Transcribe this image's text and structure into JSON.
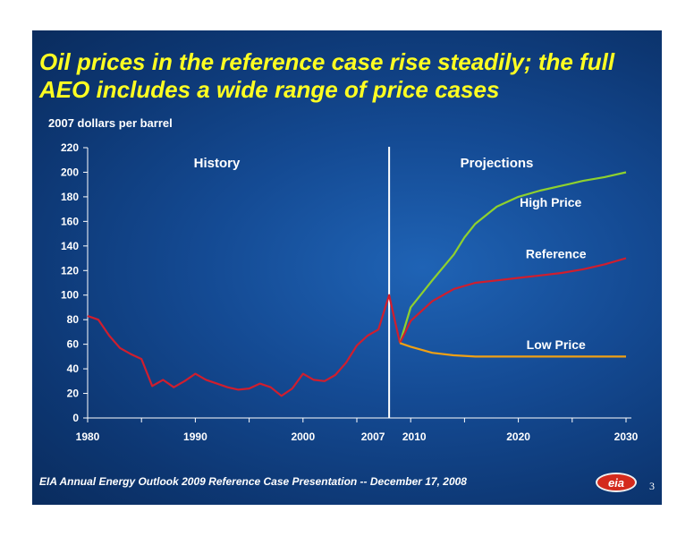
{
  "slide": {
    "title": "Oil prices in the reference case rise steadily; the full AEO includes a wide range of price cases",
    "footer": "EIA Annual Energy Outlook 2009 Reference Case Presentation -- December 17, 2008",
    "page_number": "3",
    "logo_text": "eia",
    "background_color": "#144a93",
    "title_color": "#ffff22"
  },
  "chart_data": {
    "type": "line",
    "title": "",
    "xlabel": "",
    "ylabel": "2007 dollars per barrel",
    "xlim": [
      1980,
      2030
    ],
    "ylim": [
      0,
      220
    ],
    "y_ticks": [
      0,
      20,
      40,
      60,
      80,
      100,
      120,
      140,
      160,
      180,
      200,
      220
    ],
    "x_tick_labels": [
      {
        "x": 1980,
        "label": "1980"
      },
      {
        "x": 1990,
        "label": "1990"
      },
      {
        "x": 2000,
        "label": "2000"
      },
      {
        "x": 2007,
        "label": "2007"
      },
      {
        "x": 2010,
        "label": "2010"
      },
      {
        "x": 2020,
        "label": "2020"
      },
      {
        "x": 2030,
        "label": "2030"
      }
    ],
    "grid": false,
    "divider_year": 2008,
    "annotations": [
      {
        "text": "History",
        "x": 1992,
        "y": 204
      },
      {
        "text": "Projections",
        "x": 2018,
        "y": 204
      }
    ],
    "series": [
      {
        "name": "History",
        "color": "#d01e2e",
        "x": [
          1980,
          1981,
          1982,
          1983,
          1984,
          1985,
          1986,
          1987,
          1988,
          1989,
          1990,
          1991,
          1992,
          1993,
          1994,
          1995,
          1996,
          1997,
          1998,
          1999,
          2000,
          2001,
          2002,
          2003,
          2004,
          2005,
          2006,
          2007,
          2008,
          2009
        ],
        "y": [
          83,
          80,
          67,
          57,
          52,
          48,
          26,
          31,
          25,
          30,
          36,
          31,
          28,
          25,
          23,
          24,
          28,
          25,
          18,
          24,
          36,
          31,
          30,
          35,
          45,
          59,
          67,
          72,
          100,
          61
        ]
      },
      {
        "name": "High Price",
        "color": "#8fd12e",
        "x": [
          2009,
          2010,
          2012,
          2014,
          2015,
          2016,
          2018,
          2020,
          2022,
          2024,
          2026,
          2028,
          2030
        ],
        "y": [
          61,
          90,
          112,
          133,
          147,
          158,
          172,
          180,
          185,
          189,
          193,
          196,
          200
        ]
      },
      {
        "name": "Reference",
        "color": "#d01e2e",
        "x": [
          2009,
          2010,
          2012,
          2014,
          2016,
          2018,
          2020,
          2022,
          2024,
          2026,
          2028,
          2030
        ],
        "y": [
          61,
          79,
          95,
          105,
          110,
          112,
          114,
          116,
          118,
          121,
          125,
          130
        ]
      },
      {
        "name": "Low Price",
        "color": "#f0a014",
        "x": [
          2009,
          2010,
          2012,
          2014,
          2016,
          2018,
          2020,
          2022,
          2024,
          2026,
          2028,
          2030
        ],
        "y": [
          61,
          58,
          53,
          51,
          50,
          50,
          50,
          50,
          50,
          50,
          50,
          50
        ]
      }
    ],
    "series_labels": [
      {
        "text": "High Price",
        "x": 2023,
        "y": 172
      },
      {
        "text": "Reference",
        "x": 2023.5,
        "y": 130
      },
      {
        "text": "Low Price",
        "x": 2023.5,
        "y": 56
      }
    ]
  }
}
